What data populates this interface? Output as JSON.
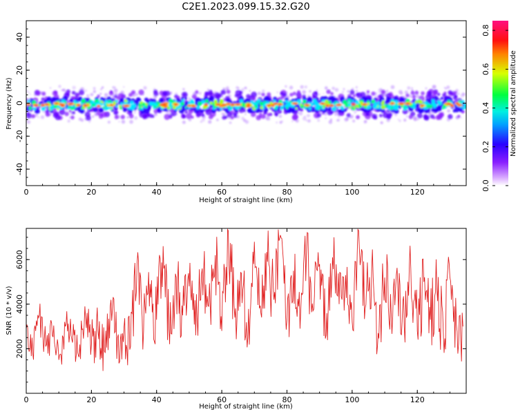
{
  "title": "C2E1.2023.099.15.32.G20",
  "chart_data": [
    {
      "type": "heatmap",
      "xlabel": "Height of straight line (km)",
      "ylabel": "Frequency (Hz)",
      "xlim": [
        0,
        135
      ],
      "ylim": [
        -50,
        50
      ],
      "x_ticks": [
        0,
        20,
        40,
        60,
        80,
        100,
        120
      ],
      "y_ticks": [
        -40,
        -20,
        0,
        20,
        40
      ],
      "band_center_hz": -1,
      "band_core_halfwidth_hz": 3,
      "band_outer_halfwidth_hz": 8,
      "colorbar": {
        "label": "Normalized spectral amplitude",
        "range": [
          0,
          0.85
        ],
        "ticks": [
          "0.0",
          "0.2",
          "0.4",
          "0.6",
          "0.8"
        ],
        "colors": [
          "#ffffff",
          "#b040ff",
          "#3000ff",
          "#00e0ff",
          "#00ff40",
          "#e0ff00",
          "#ff2020",
          "#ff1080"
        ]
      },
      "grid": false
    },
    {
      "type": "line",
      "xlabel": "Height of straight line (km)",
      "ylabel": "SNR (10 * v/v)",
      "xlim": [
        0,
        135
      ],
      "ylim": [
        0,
        7400
      ],
      "x_ticks": [
        0,
        20,
        40,
        60,
        80,
        100,
        120
      ],
      "y_ticks": [
        2000,
        4000,
        6000
      ],
      "line_color": "#e02020",
      "series": [
        {
          "x": [
            0,
            2,
            4,
            6,
            8,
            10,
            12,
            14,
            16,
            18,
            20,
            22,
            24,
            26,
            28,
            30,
            32,
            34,
            36,
            38,
            40,
            42,
            44,
            46,
            48,
            50,
            52,
            54,
            56,
            58,
            60,
            62,
            64,
            66,
            68,
            70,
            72,
            74,
            76,
            78,
            80,
            82,
            84,
            86,
            88,
            90,
            92,
            94,
            96,
            98,
            100,
            102,
            104,
            106,
            108,
            110,
            112,
            114,
            116,
            118,
            120,
            122,
            124,
            126,
            128,
            130,
            132,
            134
          ],
          "values": [
            2900,
            1800,
            3500,
            2100,
            2600,
            1500,
            3000,
            2400,
            1700,
            3900,
            2200,
            2800,
            1900,
            4200,
            2500,
            3000,
            2100,
            5800,
            2800,
            4900,
            3300,
            6600,
            2200,
            5200,
            3500,
            4800,
            2600,
            5600,
            3900,
            6200,
            2800,
            7300,
            3400,
            5400,
            2500,
            6800,
            3600,
            5900,
            4200,
            7100,
            3300,
            5500,
            2900,
            6300,
            3700,
            5800,
            2600,
            6100,
            4000,
            5300,
            3200,
            7300,
            3800,
            5600,
            2700,
            5200,
            3500,
            4900,
            3000,
            5600,
            2800,
            5000,
            3300,
            4700,
            2600,
            5200,
            3100,
            3000
          ]
        }
      ],
      "grid": false
    }
  ]
}
